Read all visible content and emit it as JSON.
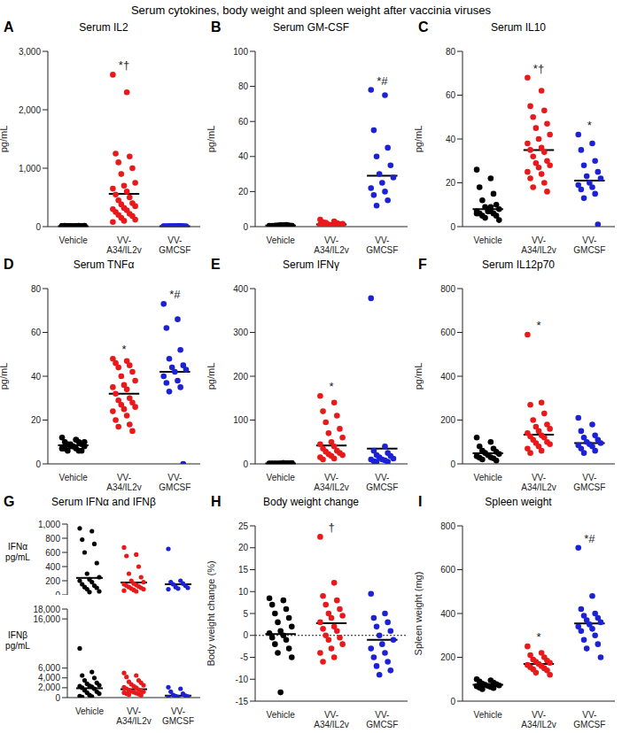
{
  "title": "Serum cytokines, body weight and spleen weight after vaccinia viruses",
  "chart_data": [
    {
      "type": "scatter",
      "panel": "A",
      "title": "Serum IL2",
      "y_label": "pg/mL",
      "categories": [
        "Vehicle",
        "VV-A34/IL2v",
        "VV-GMCSF"
      ],
      "colors": [
        "#000000",
        "#e8191b",
        "#1c22d4"
      ],
      "marker": "circle",
      "ylim": [
        0,
        3000
      ],
      "yticks": [
        0,
        {
          "value": 1000,
          "label": "1,000"
        },
        {
          "value": 2000,
          "label": "2,000"
        },
        {
          "value": 3000,
          "label": "3,000"
        }
      ],
      "values": [
        [
          8,
          12,
          5,
          15,
          10,
          6,
          9,
          14,
          7,
          11,
          4,
          13,
          8,
          10,
          6,
          12,
          9,
          5,
          11,
          7
        ],
        [
          2600,
          2300,
          1250,
          1200,
          1100,
          1000,
          900,
          750,
          700,
          650,
          600,
          550,
          500,
          450,
          400,
          380,
          350,
          320,
          300,
          280,
          250,
          220,
          200,
          180,
          150,
          120,
          100,
          80
        ],
        [
          6,
          10,
          4,
          12,
          8,
          5,
          9,
          7,
          11,
          3,
          6,
          8,
          10,
          5,
          7
        ]
      ],
      "means": [
        9,
        560,
        7
      ],
      "significance": [
        null,
        "*†",
        null
      ]
    },
    {
      "type": "scatter",
      "panel": "B",
      "title": "Serum GM-CSF",
      "y_label": "pg/mL",
      "categories": [
        "Vehicle",
        "VV-A34/IL2v",
        "VV-GMCSF"
      ],
      "colors": [
        "#000000",
        "#e8191b",
        "#1c22d4"
      ],
      "marker": "circle",
      "ylim": [
        0,
        100
      ],
      "yticks": [
        0,
        20,
        40,
        60,
        80,
        100
      ],
      "values": [
        [
          0.5,
          0.8,
          0.3,
          1,
          0.6,
          0.4,
          0.7,
          0.5,
          0.9,
          0.2,
          0.6,
          0.5,
          0.8,
          0.4,
          0.7,
          0.3,
          0.5,
          0.6
        ],
        [
          4,
          3,
          2.5,
          2,
          1.8,
          1.5,
          1.2,
          1,
          0.8,
          0.6,
          0.5,
          0.4,
          1.3,
          2.2,
          0.9,
          0.7,
          1.6,
          0.3,
          1.1,
          0.5
        ],
        [
          78,
          75,
          55,
          45,
          40,
          35,
          30,
          28,
          25,
          22,
          20,
          18,
          15,
          12
        ]
      ],
      "means": [
        0.6,
        1.3,
        29
      ],
      "significance": [
        null,
        null,
        "*#"
      ]
    },
    {
      "type": "scatter",
      "panel": "C",
      "title": "Serum IL10",
      "y_label": "pg/mL",
      "categories": [
        "Vehicle",
        "VV-A34/IL2v",
        "VV-GMCSF"
      ],
      "colors": [
        "#000000",
        "#e8191b",
        "#1c22d4"
      ],
      "marker": "circle",
      "ylim": [
        0,
        80
      ],
      "yticks": [
        0,
        20,
        40,
        60,
        80
      ],
      "values": [
        [
          26,
          22,
          18,
          15,
          12,
          10,
          9,
          8,
          8,
          7,
          7,
          6,
          6,
          5,
          5,
          4,
          3,
          7,
          6,
          9
        ],
        [
          68,
          62,
          55,
          53,
          50,
          47,
          45,
          42,
          40,
          38,
          36,
          35,
          34,
          32,
          30,
          29,
          28,
          27,
          25,
          24,
          22,
          20,
          18,
          16
        ],
        [
          42,
          38,
          35,
          30,
          28,
          25,
          23,
          22,
          20,
          19,
          18,
          17,
          15,
          13,
          1
        ]
      ],
      "means": [
        8,
        35,
        21
      ],
      "significance": [
        null,
        "*†",
        "*"
      ]
    },
    {
      "type": "scatter",
      "panel": "D",
      "title": "Serum TNFα",
      "y_label": "pg/mL",
      "categories": [
        "Vehicle",
        "VV-A34/IL2v",
        "VV-GMCSF"
      ],
      "colors": [
        "#000000",
        "#e8191b",
        "#1c22d4"
      ],
      "marker": "circle",
      "ylim": [
        0,
        80
      ],
      "yticks": [
        0,
        20,
        40,
        60,
        80
      ],
      "values": [
        [
          12,
          11,
          10,
          10,
          9,
          9,
          8,
          8,
          8,
          7,
          7,
          7,
          6,
          6,
          6,
          9,
          10,
          8,
          7,
          11
        ],
        [
          48,
          47,
          46,
          45,
          44,
          42,
          40,
          38,
          36,
          35,
          34,
          32,
          30,
          29,
          28,
          27,
          26,
          25,
          24,
          22,
          20,
          18,
          17,
          15
        ],
        [
          73,
          66,
          62,
          52,
          48,
          45,
          44,
          43,
          42,
          40,
          38,
          37,
          35,
          33,
          0
        ]
      ],
      "means": [
        8.5,
        32,
        42
      ],
      "significance": [
        null,
        "*",
        "*#"
      ]
    },
    {
      "type": "scatter",
      "panel": "E",
      "title": "Serum IFNγ",
      "y_label": "pg/mL",
      "categories": [
        "Vehicle",
        "VV-A34/IL2v",
        "VV-GMCSF"
      ],
      "colors": [
        "#000000",
        "#e8191b",
        "#1c22d4"
      ],
      "marker": "circle",
      "ylim": [
        0,
        400
      ],
      "yticks": [
        0,
        100,
        200,
        300,
        400
      ],
      "values": [
        [
          1,
          2,
          0.5,
          1.5,
          0.8,
          1.2,
          0.3,
          2,
          1,
          0.6,
          1.8,
          0.9,
          1.4,
          0.5,
          1.1,
          0.7,
          1.6,
          1
        ],
        [
          155,
          140,
          120,
          110,
          95,
          80,
          70,
          60,
          50,
          45,
          40,
          35,
          30,
          28,
          25,
          22,
          20,
          18,
          15,
          12,
          10
        ],
        [
          378,
          40,
          30,
          25,
          20,
          18,
          15,
          12,
          10,
          10,
          8,
          6,
          5,
          5
        ]
      ],
      "means": [
        1,
        42,
        35
      ],
      "significance": [
        null,
        "*",
        null
      ]
    },
    {
      "type": "scatter",
      "panel": "F",
      "title": "Serum IL12p70",
      "y_label": "pg/mL",
      "categories": [
        "Vehicle",
        "VV-A34/IL2v",
        "VV-GMCSF"
      ],
      "colors": [
        "#000000",
        "#e8191b",
        "#1c22d4"
      ],
      "marker": "circle",
      "ylim": [
        0,
        800
      ],
      "yticks": [
        0,
        200,
        400,
        600,
        800
      ],
      "values": [
        [
          120,
          100,
          80,
          70,
          60,
          55,
          50,
          45,
          40,
          35,
          30,
          28,
          25,
          20,
          15
        ],
        [
          590,
          280,
          270,
          230,
          200,
          180,
          170,
          160,
          150,
          140,
          130,
          125,
          120,
          110,
          100,
          95,
          90,
          80,
          70,
          60,
          50
        ],
        [
          210,
          180,
          150,
          130,
          120,
          110,
          100,
          95,
          90,
          85,
          80,
          70,
          60,
          50
        ]
      ],
      "means": [
        48,
        133,
        95
      ],
      "significance": [
        null,
        "*",
        null
      ]
    },
    {
      "type": "scatter",
      "panel": "G",
      "title": "Serum IFNα and IFNβ",
      "categories": [
        "Vehicle",
        "VV-A34/IL2v",
        "VV-GMCSF"
      ],
      "colors": [
        "#000000",
        "#e8191b",
        "#1c22d4"
      ],
      "marker": "circle",
      "subplots": [
        {
          "y_label": "IFNα pg/mL",
          "ylim": [
            0,
            1000
          ],
          "yticks": [
            0,
            200,
            400,
            600,
            800,
            {
              "value": 1000,
              "label": "1,000"
            }
          ],
          "values": [
            [
              940,
              900,
              780,
              720,
              600,
              450,
              300,
              250,
              220,
              200,
              180,
              150,
              130,
              110,
              100,
              80,
              50,
              40
            ],
            [
              670,
              570,
              550,
              400,
              300,
              250,
              200,
              180,
              160,
              150,
              140,
              130,
              120,
              110,
              100,
              90,
              80,
              70,
              60,
              50
            ],
            [
              650,
              200,
              180,
              160,
              150,
              130,
              110,
              100,
              90,
              80
            ]
          ],
          "means": [
            240,
            175,
            150
          ]
        },
        {
          "y_label": "IFNβ pg/mL",
          "ylim": [
            0,
            18000
          ],
          "yticks": [
            0,
            {
              "value": 2000,
              "label": "2,000"
            },
            {
              "value": 4000,
              "label": "4,000"
            },
            {
              "value": 6000,
              "label": "6,000"
            },
            {
              "value": 16000,
              "label": "16,000"
            },
            {
              "value": 18000,
              "label": "18,000"
            }
          ],
          "values": [
            [
              10000,
              5200,
              4500,
              4000,
              3500,
              3000,
              2800,
              2500,
              2400,
              2300,
              2200,
              2000,
              1800,
              1500,
              1200,
              1000,
              800,
              500,
              300,
              200,
              100
            ],
            [
              5000,
              4500,
              4200,
              3500,
              3200,
              3000,
              2700,
              2500,
              2300,
              2100,
              2000,
              1800,
              1600,
              1500,
              1400,
              1300,
              1200,
              1100,
              1000,
              900,
              800,
              700,
              600,
              500
            ],
            [
              2100,
              1800,
              1200,
              800,
              500,
              400,
              300,
              200,
              100,
              50
            ]
          ],
          "means": [
            1900,
            1700,
            400
          ]
        }
      ]
    },
    {
      "type": "scatter",
      "panel": "H",
      "title": "Body weight change",
      "y_label": "Body weight change (%)",
      "categories": [
        "Vehicle",
        "VV-A34/IL2v",
        "VV-GMCSF"
      ],
      "colors": [
        "#000000",
        "#e8191b",
        "#1c22d4"
      ],
      "marker": "circle",
      "ylim": [
        -15,
        25
      ],
      "yticks": [
        -15,
        -10,
        -5,
        0,
        5,
        10,
        15,
        20,
        25
      ],
      "baseline": 0,
      "values": [
        [
          8.5,
          8,
          7,
          6,
          5,
          4,
          3,
          2,
          1,
          0.5,
          0,
          -0.5,
          -1,
          -2,
          -3,
          -4,
          -5,
          -13
        ],
        [
          22.5,
          12,
          9,
          8,
          7,
          6,
          5,
          4.5,
          4,
          3,
          2,
          1.5,
          1,
          0,
          -0.5,
          -1,
          -2,
          -3,
          -4,
          -5,
          -6
        ],
        [
          9.5,
          5,
          4,
          3,
          2,
          1,
          0,
          -1,
          -2,
          -3,
          -4,
          -5,
          -6,
          -7,
          -8,
          -9
        ]
      ],
      "means": [
        0.3,
        2.8,
        -1
      ],
      "significance": [
        null,
        "†",
        null
      ]
    },
    {
      "type": "scatter",
      "panel": "I",
      "title": "Spleen weight",
      "y_label": "Spleen weight (mg)",
      "categories": [
        "Vehicle",
        "VV-A34/IL2v",
        "VV-GMCSF"
      ],
      "colors": [
        "#000000",
        "#e8191b",
        "#1c22d4"
      ],
      "marker": "circle",
      "ylim": [
        0,
        800
      ],
      "yticks": [
        0,
        200,
        400,
        600,
        800
      ],
      "values": [
        [
          100,
          95,
          90,
          85,
          80,
          78,
          75,
          72,
          70,
          68,
          65,
          62,
          60,
          55
        ],
        [
          250,
          220,
          210,
          200,
          190,
          185,
          180,
          175,
          170,
          165,
          160,
          155,
          150,
          145,
          140,
          130,
          120
        ],
        [
          700,
          480,
          420,
          400,
          390,
          380,
          370,
          360,
          350,
          340,
          330,
          320,
          300,
          280,
          260,
          240,
          200
        ]
      ],
      "means": [
        75,
        170,
        355
      ],
      "significance": [
        null,
        "*",
        "*#"
      ]
    }
  ]
}
